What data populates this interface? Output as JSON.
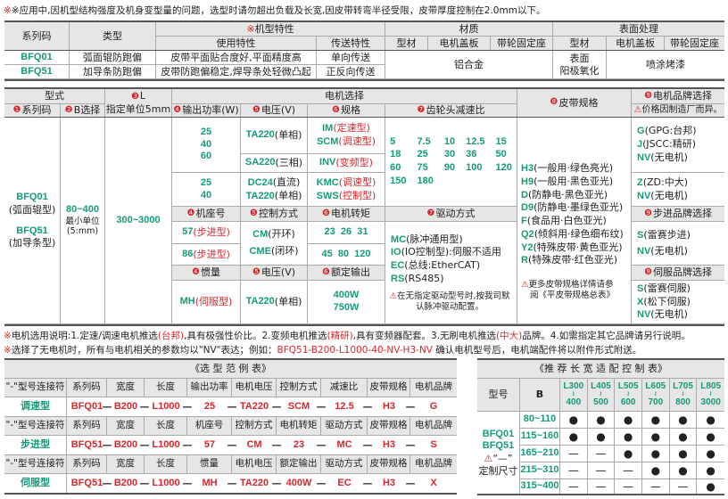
{
  "top_note": "※应用中,因机型结构强度及机身变型量的问题，选型时请勿超出负载及长宽,因皮带转弯半径受限，皮带厚度控制在2.0mm以下。",
  "spec": {
    "h_series": "系列码",
    "h_type": "类型",
    "h_mark": "※",
    "h_features": "机型特性",
    "h_material": "材质",
    "h_surface": "表面处理",
    "h_use": "使用特性",
    "h_transfer": "传送特性",
    "h_profile": "型材",
    "h_cover": "电机盖板",
    "h_seat": "带轮固定座",
    "h_profile2": "型材",
    "h_cover2": "电机盖板",
    "h_seat2": "带轮固定座",
    "rows": [
      {
        "code": "BFQ01",
        "type": "弧面辊防跑偏",
        "use": "皮带平面贴合度好,平面精度高",
        "transfer": "单向传送"
      },
      {
        "code": "BFQ51",
        "type": "加导条防跑偏",
        "use": "皮带防跑偏稳定,焊导条处轻微凸起",
        "transfer": "正反向传送"
      }
    ],
    "material": "铝合金",
    "surface1": "表面",
    "surface2": "阳极氧化",
    "paint": "喷涂烤漆"
  },
  "sel": {
    "h_form": "型式",
    "h_L_num": "❸",
    "h_L": "L",
    "h_L_unit": "指定单位5mm",
    "h_motor": "电机选择",
    "h_belt_num": "❽",
    "h_belt": "皮带规格",
    "h_brand_num": "❾",
    "h_brand": "电机品牌选择",
    "h_brand_note": "价格因制造厂而异。",
    "h1": {
      "n": "❶",
      "t": "系列码"
    },
    "h2": {
      "n": "❷",
      "t": "B选择"
    },
    "h4": {
      "n": "❹",
      "t": "输出功率(W)"
    },
    "h5": {
      "n": "❺",
      "t": "电压(V)"
    },
    "h6": {
      "n": "❻",
      "t": "规格"
    },
    "h7": {
      "n": "❼",
      "t": "齿轮头减速比"
    },
    "series1": "BFQ01",
    "series1_d": "(弧面辊型)",
    "series2": "BFQ51",
    "series2_d": "(加导条型)",
    "b_range": "80~400",
    "b_min": "最小单位",
    "b_unit": "(5:mm)",
    "l_range": "300~3000",
    "power_a": [
      "25",
      "40",
      "60"
    ],
    "power_b": [
      "25",
      "40"
    ],
    "v_ta": {
      "c": "TA220",
      "d": "(单相)"
    },
    "v_sa": {
      "c": "SA220",
      "d": "(三相)"
    },
    "v_dc": {
      "c": "DC24",
      "d": "(直流)"
    },
    "v_ta2": {
      "c": "TA220",
      "d": "(单相)"
    },
    "s_im": {
      "c": "IM",
      "d": "(定速型)"
    },
    "s_scm": {
      "c": "SCM",
      "d": "(调速型)"
    },
    "s_inv": {
      "c": "INV",
      "d": "(变频型)"
    },
    "s_kmc": {
      "c": "KMC",
      "d": "(调速型)"
    },
    "s_sws": {
      "c": "SWS",
      "d": "(控制型)"
    },
    "ratios": [
      "5",
      "7.5",
      "10",
      "12.5",
      "15",
      "18",
      "25",
      "30",
      "36",
      "50",
      "60",
      "75",
      "90",
      "100",
      "120",
      "150",
      "180"
    ],
    "st_h4": {
      "n": "❹",
      "t": "机座号"
    },
    "st_h5": {
      "n": "❺",
      "t": "控制方式"
    },
    "st_h6": {
      "n": "❻",
      "t": "电机转矩"
    },
    "st_h7": {
      "n": "❼",
      "t": "驱动方式"
    },
    "frame57": {
      "c": "57",
      "d": "(步进型)"
    },
    "frame86": {
      "c": "86",
      "d": "(步进型)"
    },
    "cm": {
      "c": "CM",
      "d": "(开环)"
    },
    "cme": {
      "c": "CME",
      "d": "(闭环)"
    },
    "torque1": "23  26  31",
    "torque2": "45  80  120",
    "drives": [
      {
        "c": "MC",
        "d": "(脉冲通用型)"
      },
      {
        "c": "IO",
        "d": "(IO控制型):伺服不适用"
      },
      {
        "c": "EC",
        "d": "(总线:EtherCAT)"
      },
      {
        "c": "RS",
        "d": "(RS485)"
      }
    ],
    "drive_note": "在无指定驱动型号时,按我司默认脉冲驱动配置。",
    "sv_h4": {
      "n": "❹",
      "t": "惯量"
    },
    "sv_h5": {
      "n": "❺",
      "t": "电压(V)"
    },
    "sv_h6": {
      "n": "❻",
      "t": "额定输出"
    },
    "mh": {
      "c": "MH",
      "d": "(伺服型)"
    },
    "sv_v": {
      "c": "TA220",
      "d": "(单相)"
    },
    "out1": "400W",
    "out2": "750W",
    "belts": [
      {
        "c": "H3",
        "d": "(一般用·绿色亮光)"
      },
      {
        "c": "H9",
        "d": "(一般用·黑色亚光)"
      },
      {
        "c": "D",
        "d": "(防静电·黑色亚光)"
      },
      {
        "c": "D9",
        "d": "(防静电·墨绿色亚光)"
      },
      {
        "c": "F",
        "d": "(食品用·白色亚光)"
      },
      {
        "c": "Q2",
        "d": "(倾斜用·绿色细布纹)"
      },
      {
        "c": "Y2",
        "d": "(特殊皮带·黄色亚光)"
      },
      {
        "c": "R",
        "d": "(特殊皮带·红色亚光)"
      }
    ],
    "belt_note1": "更多皮带规格详情请参",
    "belt_note2": "阅《平皮带规格总表》",
    "brand_a": [
      {
        "c": "G",
        "d": "(GPG:台邦)"
      },
      {
        "c": "J",
        "d": "(JSCC:精研)"
      },
      {
        "c": "NV",
        "d": "(无电机)"
      }
    ],
    "brand_b": [
      {
        "c": "Z",
        "d": "(ZD:中大)"
      },
      {
        "c": "NV",
        "d": "(无电机)"
      }
    ],
    "step_brand_h": {
      "n": "❾",
      "t": "步进品牌选择"
    },
    "step_brand": [
      {
        "c": "S",
        "d": "(雷赛步进)"
      },
      {
        "c": "NV",
        "d": "(无电机)"
      }
    ],
    "servo_brand_h": {
      "n": "❾",
      "t": "伺服品牌选择"
    },
    "servo_brand": [
      {
        "c": "S",
        "d": "(雷赛伺服)"
      },
      {
        "c": "X",
        "d": "(松下伺服)"
      },
      {
        "c": "NV",
        "d": "(无电机)"
      }
    ]
  },
  "notes": {
    "n1": [
      {
        "t": "※",
        "k": "r"
      },
      {
        "t": "电机选用说明:1.定速/调速电机推选",
        "k": ""
      },
      {
        "t": "(台邦)",
        "k": "r"
      },
      {
        "t": ",具有极强性价比。2.变频电机推选",
        "k": ""
      },
      {
        "t": "(精研)",
        "k": "r"
      },
      {
        "t": ",具有变频器配套。3.无刷电机推选",
        "k": ""
      },
      {
        "t": "(中大)",
        "k": "r"
      },
      {
        "t": "品牌。4.如需指定其它品牌请另行说明。",
        "k": ""
      }
    ],
    "n2": [
      {
        "t": "※",
        "k": "r"
      },
      {
        "t": "选择了无电机时，所有与电机相关的参数均以\"NV\"表达；例如：",
        "k": ""
      },
      {
        "t": "BFQ51-B200-L1000-40-NV-H3-NV",
        "k": "r"
      },
      {
        "t": "  确认电机型号后，电机端配件将以附件形式附送。",
        "k": ""
      }
    ]
  },
  "example": {
    "title": "《选 型 范 例 表》",
    "blocks": [
      {
        "headers": [
          "\"-\"型号连接符",
          "系列码",
          "宽度",
          "长度",
          "输出功率",
          "电机电压",
          "控制方式",
          "减速比",
          "皮带规格",
          "电机品牌"
        ],
        "type": "调速型",
        "values": [
          "BFQ01",
          "B200",
          "L1000",
          "25",
          "TA220",
          "SCM",
          "12.5",
          "H3",
          "G"
        ]
      },
      {
        "headers": [
          "\"-\"型号连接符",
          "系列码",
          "宽度",
          "长度",
          "机座号",
          "控制方式",
          "电机转矩",
          "驱动方式",
          "皮带规格",
          "电机品牌"
        ],
        "type": "步进型",
        "values": [
          "BFQ51",
          "B200",
          "L1000",
          "57",
          "CM",
          "23",
          "MC",
          "H3",
          "S"
        ]
      },
      {
        "headers": [
          "\"-\"型号连接符",
          "系列码",
          "宽度",
          "长度",
          "惯量",
          "电机电压",
          "额定输出",
          "驱动方式",
          "皮带规格",
          "电机品牌"
        ],
        "type": "伺服型",
        "values": [
          "BFQ51",
          "B200",
          "L1000",
          "MH",
          "TA220",
          "400W",
          "EC",
          "H3",
          "X"
        ]
      }
    ],
    "sep": "—"
  },
  "recommend": {
    "title": "《推 荐 长 宽 适 配 控 制 表》",
    "h_model": "型号",
    "h_b": "B",
    "lengths": [
      [
        "L300",
        "400"
      ],
      [
        "L405",
        "500"
      ],
      [
        "L505",
        "600"
      ],
      [
        "L605",
        "700"
      ],
      [
        "L705",
        "800"
      ],
      [
        "L805",
        "3000"
      ]
    ],
    "models": [
      "BFQ01",
      "BFQ51"
    ],
    "dash_note": "“—”",
    "custom": "定制尺寸",
    "rows": [
      {
        "b": "80~110",
        "cells": [
          "●",
          "●",
          "●",
          "●",
          "●",
          "●"
        ]
      },
      {
        "b": "115~160",
        "cells": [
          "●",
          "●",
          "●",
          "●",
          "●",
          "●"
        ]
      },
      {
        "b": "165~210",
        "cells": [
          "—",
          "—",
          "●",
          "●",
          "●",
          "●"
        ]
      },
      {
        "b": "215~310",
        "cells": [
          "—",
          "—",
          "—",
          "●",
          "●",
          "●"
        ]
      },
      {
        "b": "315~400",
        "cells": [
          "—",
          "—",
          "—",
          "—",
          "—",
          "●"
        ]
      }
    ]
  },
  "colors": {
    "green": "#169a79",
    "red": "#d8252b",
    "header": "#e6e6e6"
  }
}
